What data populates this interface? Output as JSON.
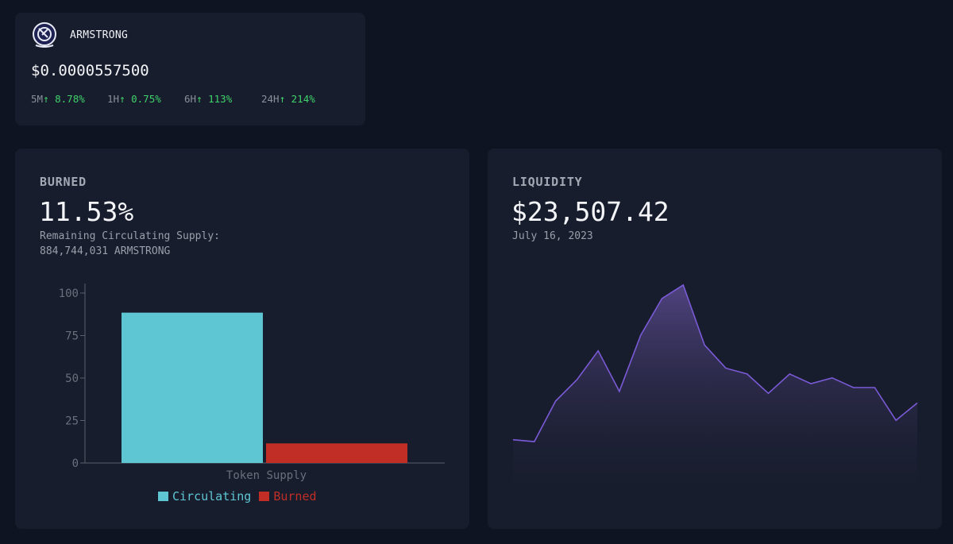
{
  "token": {
    "name": "ARMSTRONG",
    "price": "$0.0000557500",
    "changes": [
      {
        "label": "5M",
        "arrow": "↑",
        "value": "8.78%"
      },
      {
        "label": "1H",
        "arrow": "↑",
        "value": "0.75%"
      },
      {
        "label": "6H",
        "arrow": "↑",
        "value": "113%"
      },
      {
        "label": "24H",
        "arrow": "↑",
        "value": "214%"
      }
    ],
    "logo_icon": "astronaut-helmet-icon"
  },
  "burned": {
    "heading": "BURNED",
    "value": "11.53%",
    "supply_label": "Remaining Circulating Supply:",
    "supply_value": "884,744,031 ARMSTRONG"
  },
  "liquidity": {
    "heading": "LIQUIDITY",
    "value": "$23,507.42",
    "date": "July 16, 2023"
  },
  "colors": {
    "circulating": "#5ec6d3",
    "burned": "#c12e26",
    "positive": "#3fd26b",
    "area_line": "#7a5ad6"
  },
  "chart_data": [
    {
      "type": "bar",
      "categories": [
        "Token Supply"
      ],
      "series": [
        {
          "name": "Circulating",
          "values": [
            88.47
          ]
        },
        {
          "name": "Burned",
          "values": [
            11.53
          ]
        }
      ],
      "xlabel": "Token Supply",
      "ylim": [
        0,
        100
      ],
      "yticks": [
        0,
        25,
        50,
        75,
        100
      ],
      "legend": "bottom",
      "grid": false
    },
    {
      "type": "area",
      "x": [
        1,
        2,
        3,
        4,
        5,
        6,
        7,
        8,
        9,
        10,
        11,
        12,
        13,
        14,
        15,
        16,
        17,
        18,
        19,
        20
      ],
      "values": [
        26,
        25,
        46,
        57,
        72,
        51,
        80,
        99,
        106,
        75,
        63,
        60,
        50,
        60,
        55,
        58,
        53,
        53,
        36,
        45
      ],
      "ylim": [
        0,
        115
      ],
      "grid": false,
      "legend": "none"
    }
  ]
}
